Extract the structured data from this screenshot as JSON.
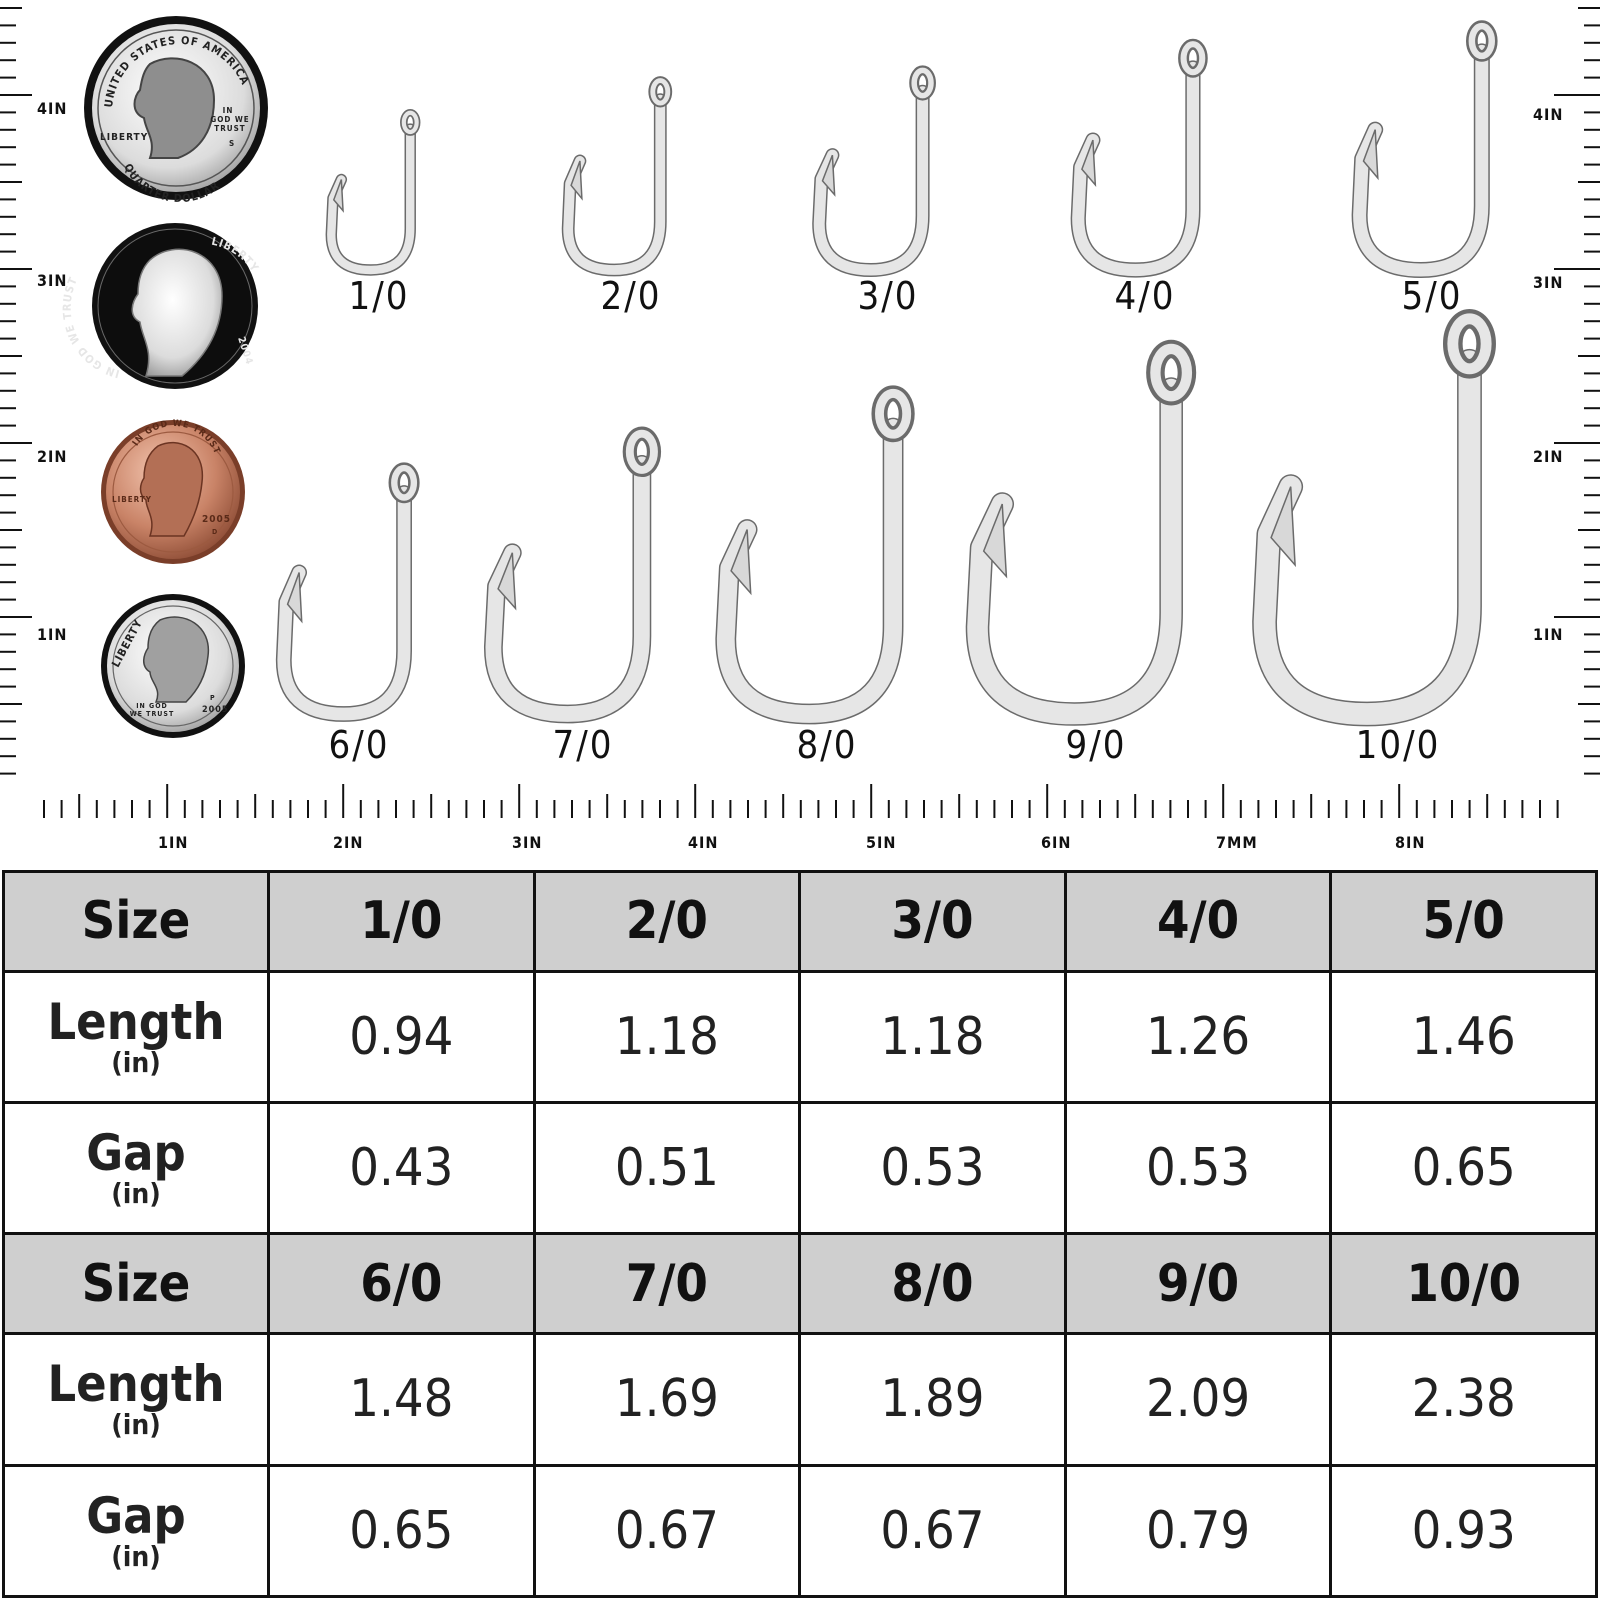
{
  "ruler": {
    "left_labels": [
      "4IN",
      "3IN",
      "2IN",
      "1IN"
    ],
    "right_labels": [
      "4IN",
      "3IN",
      "2IN",
      "1IN"
    ],
    "bottom_labels": [
      "1IN",
      "2IN",
      "3IN",
      "4IN",
      "5IN",
      "6IN",
      "7MM",
      "8IN"
    ]
  },
  "coins": {
    "quarter": {
      "top_text": "UNITED STATES OF AMERICA",
      "bottom_text": "QUARTER DOLLAR",
      "liberty": "LIBERTY",
      "motto": [
        "IN",
        "GOD WE",
        "TRUST"
      ],
      "mint": "S"
    },
    "nickel": {
      "left_text": "IN GOD WE TRUST",
      "right_text": "LIBERTY",
      "year": "2004"
    },
    "penny": {
      "top_text": "IN GOD WE TRUST",
      "liberty": "LIBERTY",
      "year": "2005",
      "mint": "D"
    },
    "dime": {
      "liberty": "LIBERTY",
      "motto": [
        "IN GOD",
        "WE TRUST"
      ],
      "year": "2005",
      "mint": "P"
    }
  },
  "hooks": {
    "row1": [
      "1/0",
      "2/0",
      "3/0",
      "4/0",
      "5/0"
    ],
    "row2": [
      "6/0",
      "7/0",
      "8/0",
      "9/0",
      "10/0"
    ]
  },
  "table": {
    "size_label": "Size",
    "length_label": "Length",
    "gap_label": "Gap",
    "unit_label": "(in)",
    "group1": {
      "sizes": [
        "1/0",
        "2/0",
        "3/0",
        "4/0",
        "5/0"
      ],
      "length": [
        "0.94",
        "1.18",
        "1.18",
        "1.26",
        "1.46"
      ],
      "gap": [
        "0.43",
        "0.51",
        "0.53",
        "0.53",
        "0.65"
      ]
    },
    "group2": {
      "sizes": [
        "6/0",
        "7/0",
        "8/0",
        "9/0",
        "10/0"
      ],
      "length": [
        "1.48",
        "1.69",
        "1.89",
        "2.09",
        "2.38"
      ],
      "gap": [
        "0.65",
        "0.67",
        "0.67",
        "0.79",
        "0.93"
      ]
    }
  }
}
